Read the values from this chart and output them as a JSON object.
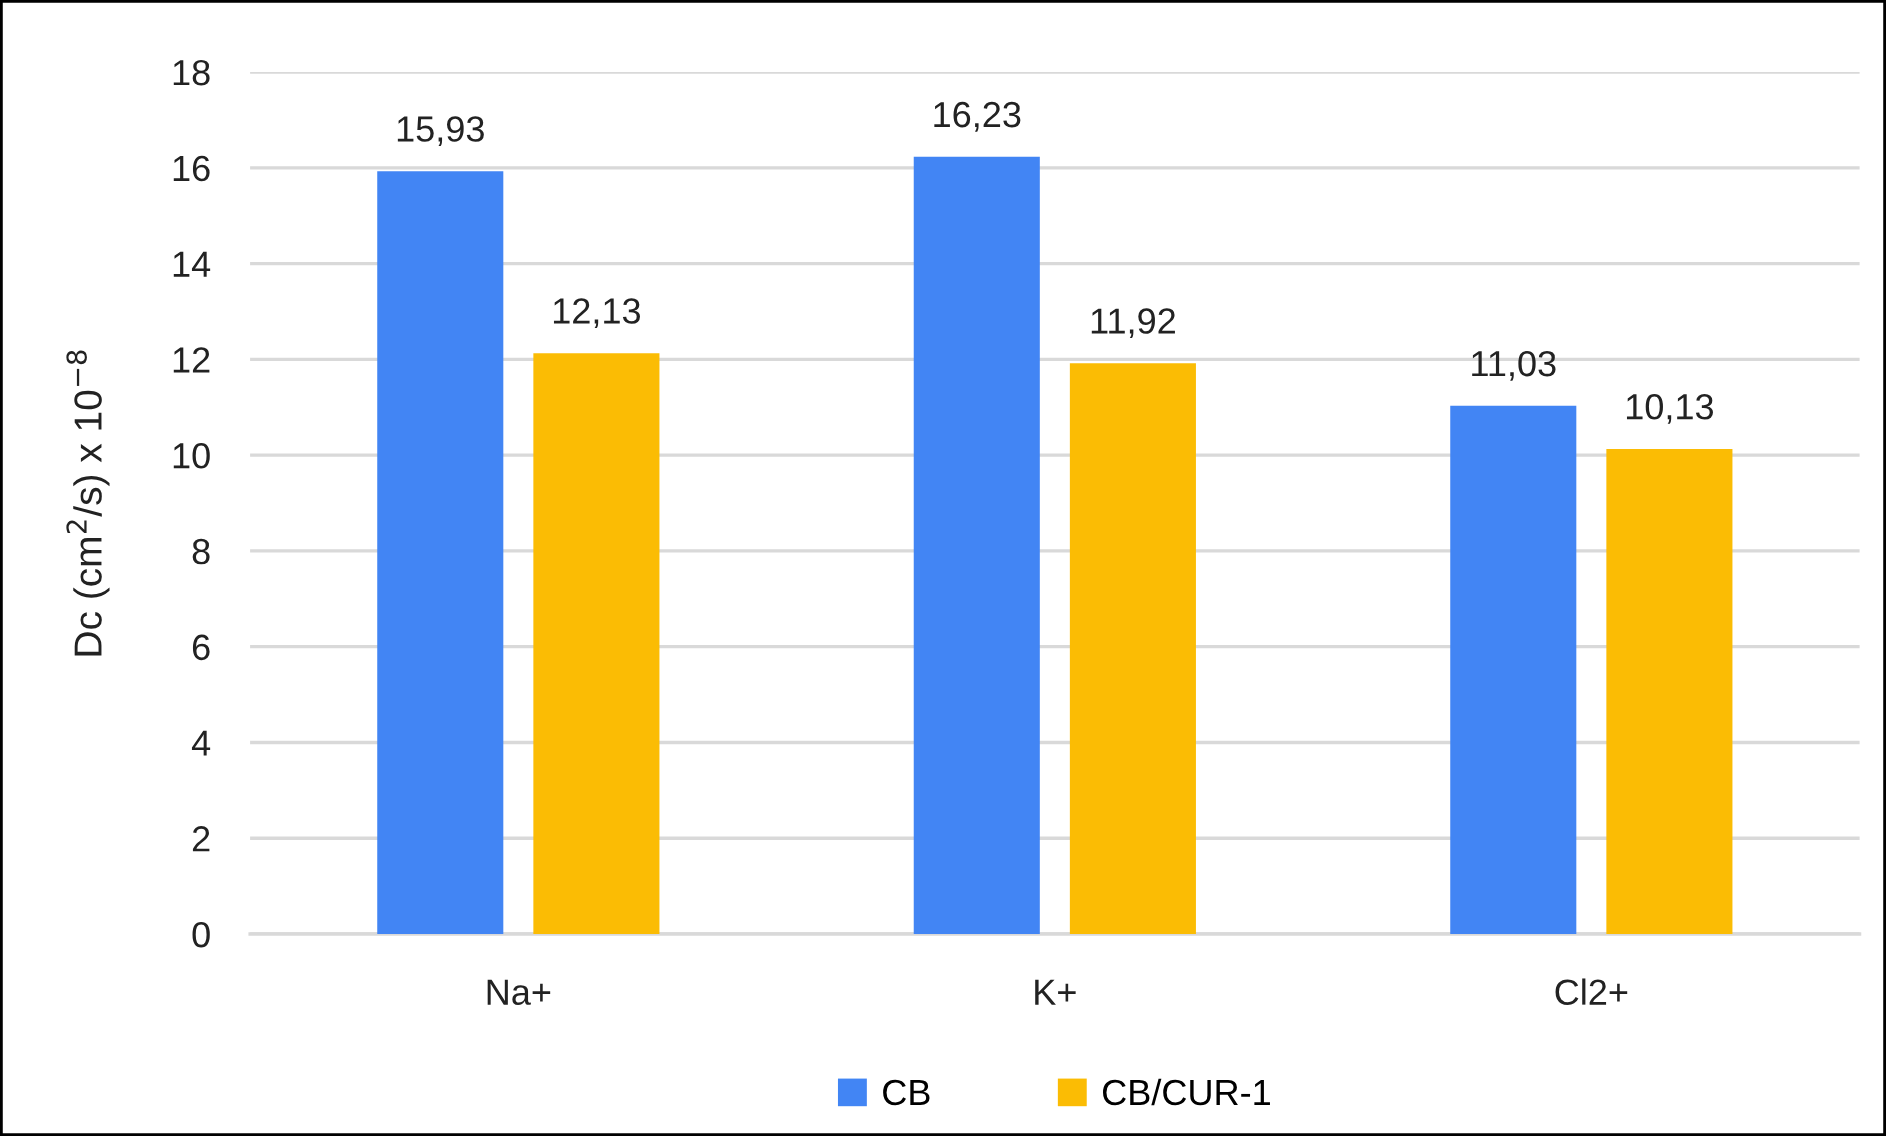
{
  "chart_data": {
    "type": "bar",
    "ylabel": "Dc (cm$^{2}$/s) x 10$^{−8}$",
    "categories": [
      "Na+",
      "K+",
      "Cl2+"
    ],
    "series": [
      {
        "name": "CB",
        "color": "#4285f4",
        "values": [
          15.93,
          16.23,
          11.03
        ],
        "value_labels": [
          "15,93",
          "16,23",
          "11,03"
        ]
      },
      {
        "name": "CB/CUR-1",
        "color": "#fbbc04",
        "values": [
          12.13,
          11.92,
          10.13
        ],
        "value_labels": [
          "12,13",
          "11,92",
          "10,13"
        ]
      }
    ],
    "ylim": [
      0,
      18
    ],
    "yticks": [
      0,
      2,
      4,
      6,
      8,
      10,
      12,
      14,
      16,
      18
    ],
    "grid": "y",
    "legend": "bottom"
  }
}
